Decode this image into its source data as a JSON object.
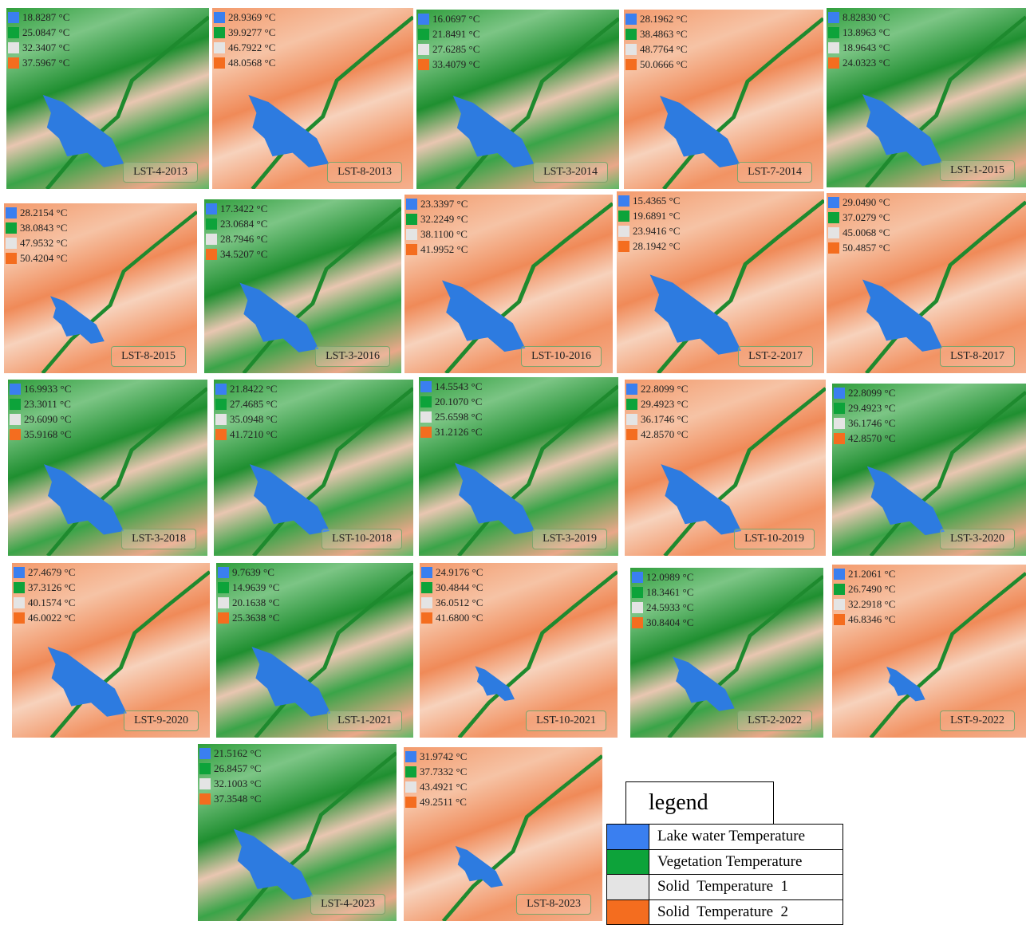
{
  "maps": [
    {
      "label": "LST-4-2013",
      "temps": [
        "18.8287 °C",
        "25.0847 °C",
        "32.3407 °C",
        "37.5967 °C"
      ]
    },
    {
      "label": "LST-8-2013",
      "temps": [
        "28.9369 °C",
        "39.9277 °C",
        "46.7922 °C",
        "48.0568 °C"
      ]
    },
    {
      "label": "LST-3-2014",
      "temps": [
        "16.0697 °C",
        "21.8491 °C",
        "27.6285 °C",
        "33.4079 °C"
      ]
    },
    {
      "label": "LST-7-2014",
      "temps": [
        "28.1962 °C",
        "38.4863 °C",
        "48.7764 °C",
        "50.0666 °C"
      ]
    },
    {
      "label": "LST-1-2015",
      "temps": [
        "8.82830 °C",
        "13.8963 °C",
        "18.9643 °C",
        "24.0323 °C"
      ]
    },
    {
      "label": "LST-8-2015",
      "temps": [
        "28.2154 °C",
        "38.0843 °C",
        "47.9532 °C",
        "50.4204 °C"
      ]
    },
    {
      "label": "LST-3-2016",
      "temps": [
        "17.3422 °C",
        "23.0684 °C",
        "28.7946 °C",
        "34.5207 °C"
      ]
    },
    {
      "label": "LST-10-2016",
      "temps": [
        "23.3397 °C",
        "32.2249 °C",
        "38.1100 °C",
        "41.9952 °C"
      ]
    },
    {
      "label": "LST-2-2017",
      "temps": [
        "15.4365 °C",
        "19.6891 °C",
        "23.9416 °C",
        "28.1942 °C"
      ]
    },
    {
      "label": "LST-8-2017",
      "temps": [
        "29.0490 °C",
        "37.0279 °C",
        "45.0068 °C",
        "50.4857 °C"
      ]
    },
    {
      "label": "LST-3-2018",
      "temps": [
        "16.9933 °C",
        "23.3011 °C",
        "29.6090 °C",
        "35.9168 °C"
      ]
    },
    {
      "label": "LST-10-2018",
      "temps": [
        "21.8422 °C",
        "27.4685 °C",
        "35.0948 °C",
        "41.7210 °C"
      ]
    },
    {
      "label": "LST-3-2019",
      "temps": [
        "14.5543 °C",
        "20.1070 °C",
        "25.6598 °C",
        "31.2126 °C"
      ]
    },
    {
      "label": "LST-10-2019",
      "temps": [
        "22.8099 °C",
        "29.4923 °C",
        "36.1746 °C",
        "42.8570 °C"
      ]
    },
    {
      "label": "LST-3-2020",
      "temps": [
        "22.8099 °C",
        "29.4923 °C",
        "36.1746 °C",
        "42.8570 °C"
      ]
    },
    {
      "label": "LST-9-2020",
      "temps": [
        "27.4679 °C",
        "37.3126 °C",
        "40.1574 °C",
        "46.0022 °C"
      ]
    },
    {
      "label": "LST-1-2021",
      "temps": [
        "9.7639 °C",
        "14.9639 °C",
        "20.1638 °C",
        "25.3638 °C"
      ]
    },
    {
      "label": "LST-10-2021",
      "temps": [
        "24.9176 °C",
        "30.4844 °C",
        "36.0512 °C",
        "41.6800 °C"
      ]
    },
    {
      "label": "LST-2-2022",
      "temps": [
        "12.0989 °C",
        "18.3461 °C",
        "24.5933 °C",
        "30.8404 °C"
      ]
    },
    {
      "label": "LST-9-2022",
      "temps": [
        "21.2061 °C",
        "26.7490 °C",
        "32.2918 °C",
        "46.8346 °C"
      ]
    },
    {
      "label": "LST-4-2023",
      "temps": [
        "21.5162 °C",
        "26.8457 °C",
        "32.1003 °C",
        "37.3548 °C"
      ]
    },
    {
      "label": "LST-8-2023",
      "temps": [
        "31.9742 °C",
        "37.7332 °C",
        "43.4921 °C",
        "49.2511 °C"
      ]
    }
  ],
  "legend": {
    "title": "legend",
    "items": [
      "Lake water Temperature",
      "Vegetation Temperature",
      "Solid  Temperature  1",
      "Solid  Temperature  2"
    ]
  }
}
